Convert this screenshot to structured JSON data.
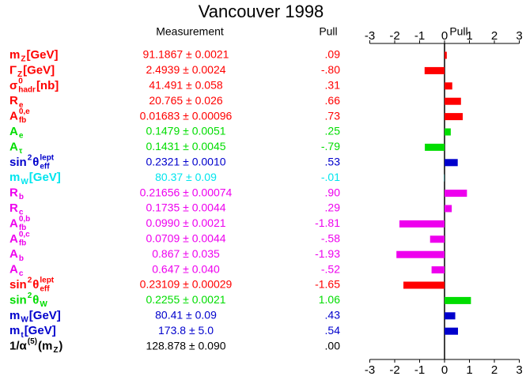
{
  "chart_data": {
    "type": "pull",
    "title": "Vancouver 1998",
    "columns": [
      "Measurement",
      "Pull"
    ],
    "axis_label": "Pull",
    "xlim": [
      -3,
      3
    ],
    "xticks": [
      -3,
      -2,
      -1,
      0,
      1,
      2,
      3
    ],
    "rows": [
      {
        "label": [
          {
            "text": "m"
          },
          {
            "sub": "Z"
          },
          {
            "text": " [GeV]"
          }
        ],
        "measurement": "91.1867 ± 0.0021",
        "color": "#ff0000"
      },
      {
        "label": [
          {
            "text": "Γ"
          },
          {
            "sub": "Z"
          },
          {
            "text": " [GeV]"
          }
        ],
        "measurement": "2.4939 ± 0.0024",
        "color": "#ff0000"
      },
      {
        "label": [
          {
            "text": "σ"
          },
          {
            "sup": "0",
            "sub": "hadr"
          },
          {
            "text": " [nb]"
          }
        ],
        "measurement": "41.491 ± 0.058",
        "color": "#ff0000"
      },
      {
        "label": [
          {
            "text": "R"
          },
          {
            "sub": "e"
          }
        ],
        "measurement": "20.765 ± 0.026",
        "color": "#ff0000"
      },
      {
        "label": [
          {
            "text": "A"
          },
          {
            "sup": "0,e",
            "sub": "fb"
          }
        ],
        "measurement": "0.01683 ± 0.00096",
        "color": "#ff0000"
      },
      {
        "label": [
          {
            "text": "A"
          },
          {
            "sub": "e"
          }
        ],
        "measurement": "0.1479 ± 0.0051",
        "color": "#00dd00"
      },
      {
        "label": [
          {
            "text": "A"
          },
          {
            "sub": "τ"
          }
        ],
        "measurement": "0.1431 ± 0.0045",
        "color": "#00dd00"
      },
      {
        "label": [
          {
            "text": "sin"
          },
          {
            "sup": "2"
          },
          {
            "text": "θ"
          },
          {
            "sup": "lept",
            "sub": "eff"
          }
        ],
        "measurement": "0.2321 ± 0.0010",
        "color": "#0000cc"
      },
      {
        "label": [
          {
            "text": "m"
          },
          {
            "sub": "W"
          },
          {
            "text": " [GeV]"
          }
        ],
        "measurement": "80.37 ± 0.09",
        "color": "#00e5ee"
      },
      {
        "label": [
          {
            "text": "R"
          },
          {
            "sub": "b"
          }
        ],
        "measurement": "0.21656 ± 0.00074",
        "color": "#ee00ee"
      },
      {
        "label": [
          {
            "text": "R"
          },
          {
            "sub": "c"
          }
        ],
        "measurement": "0.1735 ± 0.0044",
        "color": "#ee00ee"
      },
      {
        "label": [
          {
            "text": "A"
          },
          {
            "sup": "0,b",
            "sub": "fb"
          }
        ],
        "measurement": "0.0990 ± 0.0021",
        "color": "#ee00ee"
      },
      {
        "label": [
          {
            "text": "A"
          },
          {
            "sup": "0,c",
            "sub": "fb"
          }
        ],
        "measurement": "0.0709 ± 0.0044",
        "color": "#ee00ee"
      },
      {
        "label": [
          {
            "text": "A"
          },
          {
            "sub": "b"
          }
        ],
        "measurement": "0.867 ± 0.035",
        "color": "#ee00ee"
      },
      {
        "label": [
          {
            "text": "A"
          },
          {
            "sub": "c"
          }
        ],
        "measurement": "0.647 ± 0.040",
        "color": "#ee00ee"
      },
      {
        "label": [
          {
            "text": "sin"
          },
          {
            "sup": "2"
          },
          {
            "text": "θ"
          },
          {
            "sup": "lept",
            "sub": "eff"
          }
        ],
        "measurement": "0.23109 ± 0.00029",
        "color": "#ff0000"
      },
      {
        "label": [
          {
            "text": "sin"
          },
          {
            "sup": "2"
          },
          {
            "text": "θ"
          },
          {
            "sub": "W"
          }
        ],
        "measurement": "0.2255 ± 0.0021",
        "color": "#00dd00"
      },
      {
        "label": [
          {
            "text": "m"
          },
          {
            "sub": "W"
          },
          {
            "text": " [GeV]"
          }
        ],
        "measurement": "80.41 ± 0.09",
        "color": "#0000cc"
      },
      {
        "label": [
          {
            "text": "m"
          },
          {
            "sub": "t"
          },
          {
            "text": " [GeV]"
          }
        ],
        "measurement": "173.8 ± 5.0",
        "color": "#0000cc"
      },
      {
        "label": [
          {
            "text": "1/α"
          },
          {
            "sup": "(5)"
          },
          {
            "text": "(m"
          },
          {
            "sub": "Z"
          },
          {
            "text": ")"
          }
        ],
        "measurement": "128.878 ± 0.090",
        "color": "#000000"
      }
    ],
    "values": [
      0.09,
      -0.8,
      0.31,
      0.66,
      0.73,
      0.25,
      -0.79,
      0.53,
      -0.01,
      0.9,
      0.29,
      -1.81,
      -0.58,
      -1.93,
      -0.52,
      -1.65,
      1.06,
      0.43,
      0.54,
      0.0
    ],
    "value_labels": [
      ".09",
      "-.80",
      ".31",
      ".66",
      ".73",
      ".25",
      "-.79",
      ".53",
      "-.01",
      ".90",
      ".29",
      "-1.81",
      "-.58",
      "-1.93",
      "-.52",
      "-1.65",
      "1.06",
      ".43",
      ".54",
      ".00"
    ]
  }
}
